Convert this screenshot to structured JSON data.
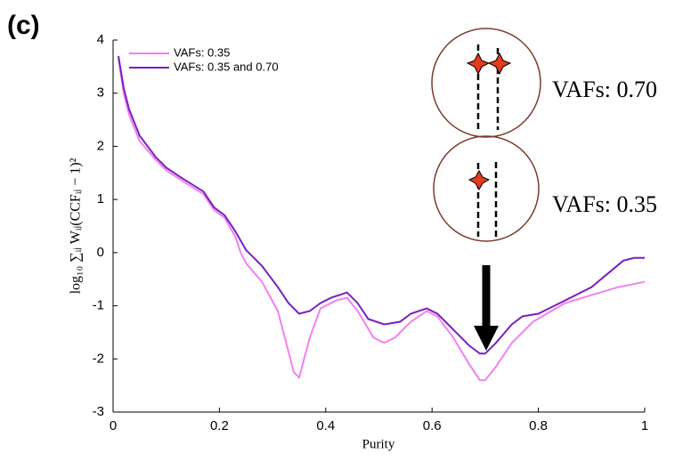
{
  "chart_data": {
    "type": "line",
    "panel_label": "(c)",
    "xlabel": "Purity",
    "ylabel": "log₁₀ ∑ᵢⱼ Wᵢⱼ(CCFᵢⱼ − 1)²",
    "xlim": [
      0,
      1
    ],
    "ylim": [
      -3,
      4
    ],
    "xticks": [
      0,
      0.2,
      0.4,
      0.6,
      0.8,
      1
    ],
    "yticks": [
      -3,
      -2,
      -1,
      0,
      1,
      2,
      3,
      4
    ],
    "grid": false,
    "legend": "upper left",
    "series": [
      {
        "name": "VAFs: 0.35",
        "color": "#f47ff0",
        "x": [
          0.01,
          0.02,
          0.03,
          0.05,
          0.08,
          0.1,
          0.13,
          0.17,
          0.19,
          0.21,
          0.23,
          0.24,
          0.25,
          0.28,
          0.31,
          0.34,
          0.35,
          0.37,
          0.39,
          0.42,
          0.44,
          0.46,
          0.49,
          0.51,
          0.53,
          0.56,
          0.59,
          0.61,
          0.64,
          0.67,
          0.69,
          0.7,
          0.72,
          0.75,
          0.79,
          0.85,
          0.9,
          0.95,
          1.0
        ],
        "values": [
          3.65,
          3.0,
          2.6,
          2.1,
          1.75,
          1.55,
          1.35,
          1.1,
          0.8,
          0.65,
          0.3,
          0,
          -0.2,
          -0.55,
          -1.1,
          -2.25,
          -2.35,
          -1.6,
          -1.05,
          -0.9,
          -0.85,
          -1.1,
          -1.6,
          -1.7,
          -1.6,
          -1.3,
          -1.1,
          -1.2,
          -1.6,
          -2.1,
          -2.4,
          -2.4,
          -2.15,
          -1.7,
          -1.3,
          -0.95,
          -0.8,
          -0.65,
          -0.55
        ]
      },
      {
        "name": "VAFs: 0.35 and 0.70",
        "color": "#7a1fc2",
        "x": [
          0.01,
          0.02,
          0.03,
          0.05,
          0.08,
          0.1,
          0.13,
          0.17,
          0.19,
          0.21,
          0.23,
          0.25,
          0.28,
          0.31,
          0.33,
          0.35,
          0.37,
          0.39,
          0.41,
          0.44,
          0.46,
          0.48,
          0.51,
          0.54,
          0.56,
          0.59,
          0.61,
          0.64,
          0.67,
          0.69,
          0.7,
          0.72,
          0.75,
          0.77,
          0.8,
          0.85,
          0.9,
          0.93,
          0.96,
          0.98,
          1.0
        ],
        "values": [
          3.7,
          3.1,
          2.7,
          2.2,
          1.8,
          1.6,
          1.4,
          1.15,
          0.85,
          0.7,
          0.4,
          0.05,
          -0.25,
          -0.65,
          -0.95,
          -1.15,
          -1.1,
          -0.95,
          -0.85,
          -0.75,
          -0.95,
          -1.25,
          -1.35,
          -1.3,
          -1.15,
          -1.05,
          -1.15,
          -1.45,
          -1.75,
          -1.9,
          -1.9,
          -1.7,
          -1.35,
          -1.2,
          -1.15,
          -0.9,
          -0.65,
          -0.4,
          -0.15,
          -0.1,
          -0.1
        ]
      }
    ],
    "annotations": [
      "VAFs: 0.70",
      "VAFs: 0.35"
    ]
  }
}
